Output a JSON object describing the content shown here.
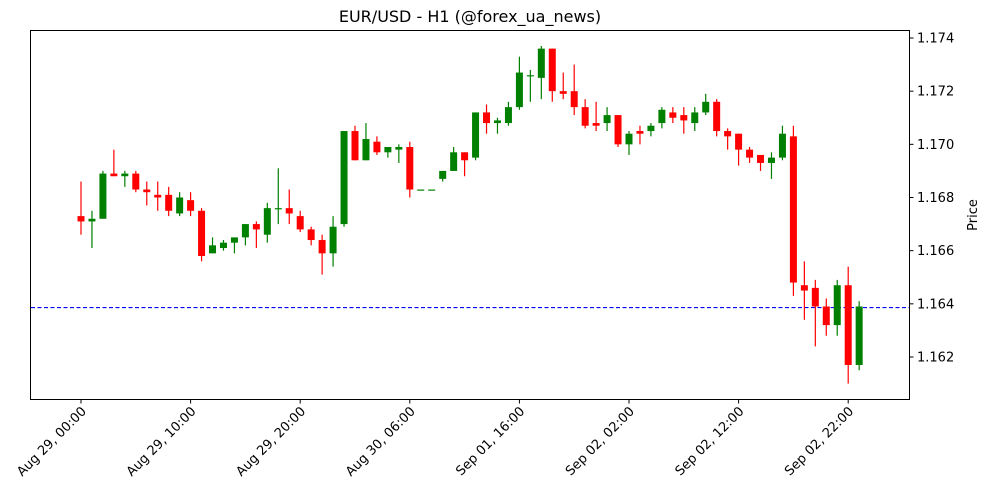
{
  "chart_data": {
    "type": "candlestick",
    "title": "EUR/USD - H1 (@forex_ua_news)",
    "xlabel": "",
    "ylabel": "Price",
    "ylim": [
      1.1605,
      1.1743
    ],
    "yticks": [
      1.162,
      1.164,
      1.166,
      1.168,
      1.17,
      1.172,
      1.174
    ],
    "ytick_labels": [
      "1.162",
      "1.164",
      "1.166",
      "1.168",
      "1.170",
      "1.172",
      "1.174"
    ],
    "xtick_labels": [
      "Aug 29, 00:00",
      "Aug 29, 10:00",
      "Aug 29, 20:00",
      "Aug 30, 06:00",
      "Sep 01, 16:00",
      "Sep 02, 02:00",
      "Sep 02, 12:00",
      "Sep 02, 22:00"
    ],
    "xtick_indices": [
      0,
      10,
      20,
      30,
      40,
      50,
      60,
      70
    ],
    "grid": false,
    "up_color": "#008000",
    "down_color": "#ff0000",
    "hline": {
      "value": 1.16386,
      "color": "#0000ff",
      "style": "dashed"
    },
    "candles": [
      {
        "o": 1.1673,
        "h": 1.1686,
        "l": 1.1666,
        "c": 1.1671
      },
      {
        "o": 1.1671,
        "h": 1.1675,
        "l": 1.1661,
        "c": 1.1672
      },
      {
        "o": 1.1672,
        "h": 1.169,
        "l": 1.1672,
        "c": 1.1689
      },
      {
        "o": 1.1689,
        "h": 1.1698,
        "l": 1.1688,
        "c": 1.1688
      },
      {
        "o": 1.1688,
        "h": 1.169,
        "l": 1.1684,
        "c": 1.1689
      },
      {
        "o": 1.1689,
        "h": 1.169,
        "l": 1.1682,
        "c": 1.1683
      },
      {
        "o": 1.1683,
        "h": 1.1686,
        "l": 1.1677,
        "c": 1.1682
      },
      {
        "o": 1.1681,
        "h": 1.1686,
        "l": 1.1675,
        "c": 1.168
      },
      {
        "o": 1.1681,
        "h": 1.1684,
        "l": 1.1673,
        "c": 1.1675
      },
      {
        "o": 1.1674,
        "h": 1.1682,
        "l": 1.1673,
        "c": 1.168
      },
      {
        "o": 1.1679,
        "h": 1.1682,
        "l": 1.1673,
        "c": 1.1675
      },
      {
        "o": 1.1675,
        "h": 1.1676,
        "l": 1.1656,
        "c": 1.1658
      },
      {
        "o": 1.1659,
        "h": 1.1665,
        "l": 1.1659,
        "c": 1.1662
      },
      {
        "o": 1.1661,
        "h": 1.1664,
        "l": 1.166,
        "c": 1.1663
      },
      {
        "o": 1.1663,
        "h": 1.1664,
        "l": 1.1659,
        "c": 1.1665
      },
      {
        "o": 1.1665,
        "h": 1.167,
        "l": 1.1662,
        "c": 1.167
      },
      {
        "o": 1.167,
        "h": 1.1671,
        "l": 1.1661,
        "c": 1.1668
      },
      {
        "o": 1.1666,
        "h": 1.1678,
        "l": 1.1663,
        "c": 1.1676
      },
      {
        "o": 1.1676,
        "h": 1.1691,
        "l": 1.167,
        "c": 1.1676
      },
      {
        "o": 1.1676,
        "h": 1.1683,
        "l": 1.167,
        "c": 1.1674
      },
      {
        "o": 1.1673,
        "h": 1.1675,
        "l": 1.1667,
        "c": 1.1668
      },
      {
        "o": 1.1668,
        "h": 1.1669,
        "l": 1.1662,
        "c": 1.1664
      },
      {
        "o": 1.1664,
        "h": 1.1666,
        "l": 1.1651,
        "c": 1.1659
      },
      {
        "o": 1.1659,
        "h": 1.1673,
        "l": 1.1654,
        "c": 1.1669
      },
      {
        "o": 1.167,
        "h": 1.1705,
        "l": 1.1669,
        "c": 1.1705
      },
      {
        "o": 1.1705,
        "h": 1.1707,
        "l": 1.1694,
        "c": 1.1694
      },
      {
        "o": 1.1694,
        "h": 1.1708,
        "l": 1.1694,
        "c": 1.1702
      },
      {
        "o": 1.1701,
        "h": 1.1703,
        "l": 1.1696,
        "c": 1.1697
      },
      {
        "o": 1.1697,
        "h": 1.1699,
        "l": 1.1695,
        "c": 1.1699
      },
      {
        "o": 1.1698,
        "h": 1.17,
        "l": 1.1693,
        "c": 1.1699
      },
      {
        "o": 1.1699,
        "h": 1.1701,
        "l": 1.168,
        "c": 1.1683
      },
      {
        "o": 1.1683,
        "h": 1.1683,
        "l": 1.1683,
        "c": 1.1683
      },
      {
        "o": 1.1683,
        "h": 1.1683,
        "l": 1.1683,
        "c": 1.1683
      },
      {
        "o": 1.1687,
        "h": 1.169,
        "l": 1.1686,
        "c": 1.169
      },
      {
        "o": 1.169,
        "h": 1.1699,
        "l": 1.169,
        "c": 1.1697
      },
      {
        "o": 1.1697,
        "h": 1.1697,
        "l": 1.1688,
        "c": 1.1694
      },
      {
        "o": 1.1695,
        "h": 1.1712,
        "l": 1.1694,
        "c": 1.1712
      },
      {
        "o": 1.1712,
        "h": 1.1715,
        "l": 1.1704,
        "c": 1.1708
      },
      {
        "o": 1.1708,
        "h": 1.171,
        "l": 1.1704,
        "c": 1.1709
      },
      {
        "o": 1.1708,
        "h": 1.1716,
        "l": 1.1707,
        "c": 1.1714
      },
      {
        "o": 1.1714,
        "h": 1.1733,
        "l": 1.1713,
        "c": 1.1727
      },
      {
        "o": 1.1726,
        "h": 1.1728,
        "l": 1.1716,
        "c": 1.1726
      },
      {
        "o": 1.1725,
        "h": 1.1737,
        "l": 1.1717,
        "c": 1.1736
      },
      {
        "o": 1.1736,
        "h": 1.1736,
        "l": 1.1716,
        "c": 1.172
      },
      {
        "o": 1.172,
        "h": 1.1727,
        "l": 1.1717,
        "c": 1.1719
      },
      {
        "o": 1.172,
        "h": 1.173,
        "l": 1.1711,
        "c": 1.1714
      },
      {
        "o": 1.1714,
        "h": 1.1717,
        "l": 1.1706,
        "c": 1.1707
      },
      {
        "o": 1.1708,
        "h": 1.1716,
        "l": 1.1705,
        "c": 1.1707
      },
      {
        "o": 1.1708,
        "h": 1.1714,
        "l": 1.1705,
        "c": 1.1711
      },
      {
        "o": 1.1711,
        "h": 1.1711,
        "l": 1.1699,
        "c": 1.17
      },
      {
        "o": 1.17,
        "h": 1.1705,
        "l": 1.1696,
        "c": 1.1704
      },
      {
        "o": 1.1705,
        "h": 1.1707,
        "l": 1.17,
        "c": 1.1704
      },
      {
        "o": 1.1705,
        "h": 1.1708,
        "l": 1.1703,
        "c": 1.1707
      },
      {
        "o": 1.1708,
        "h": 1.1714,
        "l": 1.1706,
        "c": 1.1713
      },
      {
        "o": 1.1712,
        "h": 1.1714,
        "l": 1.1708,
        "c": 1.171
      },
      {
        "o": 1.1711,
        "h": 1.1714,
        "l": 1.1704,
        "c": 1.1709
      },
      {
        "o": 1.1708,
        "h": 1.1714,
        "l": 1.1705,
        "c": 1.1712
      },
      {
        "o": 1.1712,
        "h": 1.1719,
        "l": 1.1711,
        "c": 1.1716
      },
      {
        "o": 1.1716,
        "h": 1.1717,
        "l": 1.1703,
        "c": 1.1705
      },
      {
        "o": 1.1705,
        "h": 1.1706,
        "l": 1.1698,
        "c": 1.1703
      },
      {
        "o": 1.1704,
        "h": 1.1704,
        "l": 1.1692,
        "c": 1.1698
      },
      {
        "o": 1.1698,
        "h": 1.1699,
        "l": 1.1693,
        "c": 1.1695
      },
      {
        "o": 1.1696,
        "h": 1.1696,
        "l": 1.169,
        "c": 1.1693
      },
      {
        "o": 1.1693,
        "h": 1.1697,
        "l": 1.1687,
        "c": 1.1695
      },
      {
        "o": 1.1695,
        "h": 1.1707,
        "l": 1.1694,
        "c": 1.1704
      },
      {
        "o": 1.1703,
        "h": 1.1707,
        "l": 1.1643,
        "c": 1.1648
      },
      {
        "o": 1.1647,
        "h": 1.1656,
        "l": 1.1634,
        "c": 1.1645
      },
      {
        "o": 1.1646,
        "h": 1.1649,
        "l": 1.1624,
        "c": 1.1639
      },
      {
        "o": 1.1639,
        "h": 1.1642,
        "l": 1.1628,
        "c": 1.1632
      },
      {
        "o": 1.1632,
        "h": 1.1649,
        "l": 1.1628,
        "c": 1.1647
      },
      {
        "o": 1.1647,
        "h": 1.1654,
        "l": 1.161,
        "c": 1.1617
      },
      {
        "o": 1.1617,
        "h": 1.1641,
        "l": 1.1615,
        "c": 1.1639
      }
    ]
  }
}
